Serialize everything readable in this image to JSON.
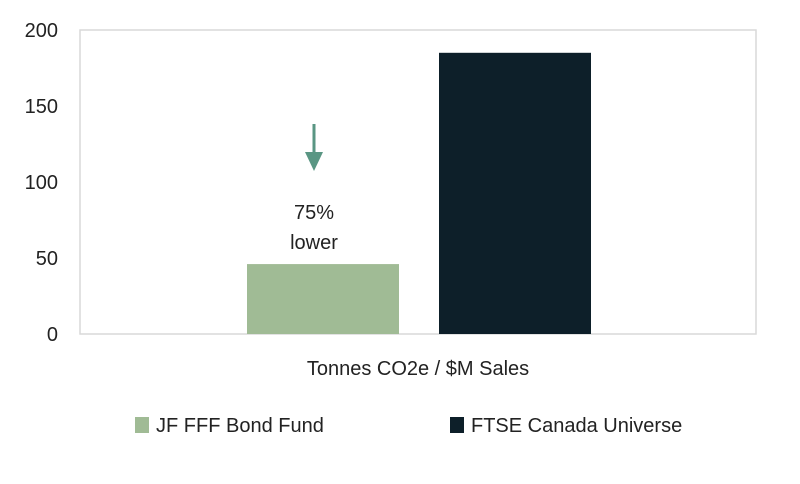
{
  "chart_data": {
    "type": "bar",
    "categories": [
      "Tonnes CO2e / $M Sales"
    ],
    "series": [
      {
        "name": "JF FFF Bond Fund",
        "values": [
          46
        ],
        "color": "#a0bb95"
      },
      {
        "name": "FTSE Canada Universe",
        "values": [
          185
        ],
        "color": "#0d1f29"
      }
    ],
    "ylim": [
      0,
      200
    ],
    "yticks": [
      0,
      50,
      100,
      150,
      200
    ],
    "xlabel": "Tonnes CO2e / $M Sales",
    "ylabel": "",
    "title": "",
    "grid": false,
    "legend_position": "bottom",
    "annotation": {
      "lines": [
        "75%",
        "lower"
      ],
      "series_index": 0,
      "arrow_color": "#5a9683",
      "arrow_direction": "down"
    },
    "frame_color": "#d9d9d9"
  }
}
